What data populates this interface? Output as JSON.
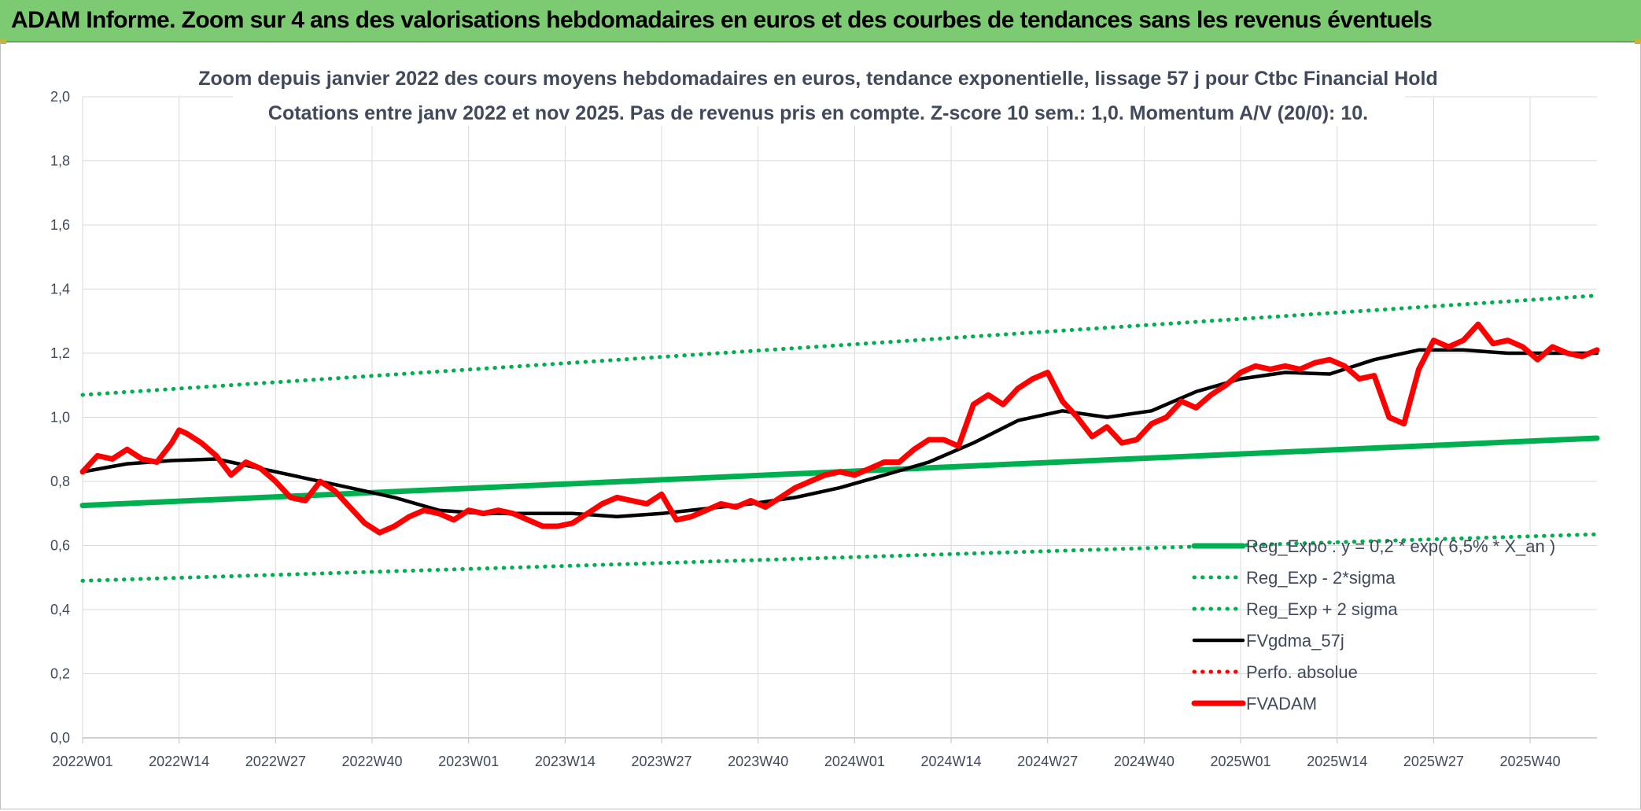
{
  "banner": {
    "title": "ADAM Informe. Zoom sur 4 ans des valorisations hebdomadaires en euros et des courbes de tendances sans les revenus éventuels"
  },
  "chart_data": {
    "type": "line",
    "title": "Zoom depuis janvier 2022 des cours moyens hebdomadaires en euros, tendance exponentielle, lissage 57 j pour Ctbc Financial Hold",
    "subtitle": "Cotations entre janv 2022 et nov 2025. Pas de revenus pris en compte. Z-score 10 sem.: 1,0. Momentum A/V (20/0): 10.",
    "xlabel": "",
    "ylabel": "",
    "ylim": [
      0,
      2
    ],
    "y_ticks": [
      "0,0",
      "0,2",
      "0,4",
      "0,6",
      "0,8",
      "1,0",
      "1,2",
      "1,4",
      "1,6",
      "1,8",
      "2,0"
    ],
    "x_ticks": [
      "2022W01",
      "2022W14",
      "2022W27",
      "2022W40",
      "2023W01",
      "2023W14",
      "2023W27",
      "2023W40",
      "2024W01",
      "2024W14",
      "2024W27",
      "2024W40",
      "2025W01",
      "2025W14",
      "2025W27",
      "2025W40"
    ],
    "x_range_weeks": [
      0,
      204
    ],
    "grid": true,
    "legend_position": "bottom-right",
    "series": [
      {
        "name": "Reg_Expo : y = 0,2 * exp( 6,5% * X_an )",
        "color": "#00b050",
        "style": "solid-thick",
        "x": [
          0,
          204
        ],
        "values": [
          0.725,
          0.935
        ]
      },
      {
        "name": "Reg_Exp - 2*sigma",
        "color": "#00b050",
        "style": "dotted",
        "x": [
          0,
          204
        ],
        "values": [
          0.49,
          0.635
        ]
      },
      {
        "name": "Reg_Exp + 2 sigma",
        "color": "#00b050",
        "style": "dotted",
        "x": [
          0,
          204
        ],
        "values": [
          1.07,
          1.38
        ]
      },
      {
        "name": "FVgdma_57j",
        "color": "#000000",
        "style": "solid",
        "x": [
          0,
          6,
          12,
          18,
          24,
          30,
          36,
          42,
          48,
          54,
          60,
          66,
          72,
          78,
          84,
          90,
          96,
          102,
          108,
          114,
          120,
          126,
          132,
          138,
          144,
          150,
          156,
          162,
          168,
          174,
          180,
          186,
          192,
          198,
          204
        ],
        "values": [
          0.83,
          0.855,
          0.865,
          0.87,
          0.84,
          0.81,
          0.78,
          0.75,
          0.71,
          0.7,
          0.7,
          0.7,
          0.69,
          0.7,
          0.715,
          0.73,
          0.75,
          0.78,
          0.82,
          0.86,
          0.92,
          0.99,
          1.02,
          1.0,
          1.02,
          1.08,
          1.12,
          1.14,
          1.135,
          1.18,
          1.21,
          1.21,
          1.2,
          1.2,
          1.2
        ]
      },
      {
        "name": "Perfo. absolue",
        "color": "#ff0000",
        "style": "dotted",
        "x": [],
        "values": []
      },
      {
        "name": "FVADAM",
        "color": "#ff0000",
        "style": "solid-thick",
        "x": [
          0,
          2,
          4,
          6,
          8,
          10,
          12,
          13,
          14,
          16,
          18,
          20,
          22,
          24,
          26,
          28,
          30,
          32,
          34,
          36,
          38,
          40,
          42,
          44,
          46,
          48,
          50,
          52,
          54,
          56,
          58,
          60,
          62,
          64,
          66,
          68,
          70,
          72,
          74,
          76,
          78,
          80,
          82,
          84,
          86,
          88,
          90,
          92,
          94,
          96,
          98,
          100,
          102,
          104,
          106,
          108,
          110,
          112,
          114,
          116,
          118,
          120,
          122,
          124,
          126,
          128,
          130,
          132,
          134,
          136,
          138,
          140,
          142,
          144,
          146,
          148,
          150,
          152,
          154,
          156,
          158,
          160,
          162,
          164,
          166,
          168,
          170,
          172,
          174,
          176,
          178,
          180,
          182,
          184,
          186,
          188,
          190,
          192,
          194,
          196,
          198,
          200,
          202,
          204
        ],
        "values": [
          0.83,
          0.88,
          0.87,
          0.9,
          0.87,
          0.86,
          0.92,
          0.96,
          0.95,
          0.92,
          0.88,
          0.82,
          0.86,
          0.84,
          0.8,
          0.75,
          0.74,
          0.8,
          0.77,
          0.72,
          0.67,
          0.64,
          0.66,
          0.69,
          0.71,
          0.7,
          0.68,
          0.71,
          0.7,
          0.71,
          0.7,
          0.68,
          0.66,
          0.66,
          0.67,
          0.7,
          0.73,
          0.75,
          0.74,
          0.73,
          0.76,
          0.68,
          0.69,
          0.71,
          0.73,
          0.72,
          0.74,
          0.72,
          0.75,
          0.78,
          0.8,
          0.82,
          0.83,
          0.82,
          0.84,
          0.86,
          0.86,
          0.9,
          0.93,
          0.93,
          0.91,
          1.04,
          1.07,
          1.04,
          1.09,
          1.12,
          1.14,
          1.05,
          1.0,
          0.94,
          0.97,
          0.92,
          0.93,
          0.98,
          1.0,
          1.05,
          1.03,
          1.07,
          1.1,
          1.14,
          1.16,
          1.15,
          1.16,
          1.15,
          1.17,
          1.18,
          1.16,
          1.12,
          1.13,
          1.0,
          0.98,
          1.15,
          1.24,
          1.22,
          1.24,
          1.29,
          1.23,
          1.24,
          1.22,
          1.18,
          1.22,
          1.2,
          1.19,
          1.21
        ]
      }
    ]
  }
}
